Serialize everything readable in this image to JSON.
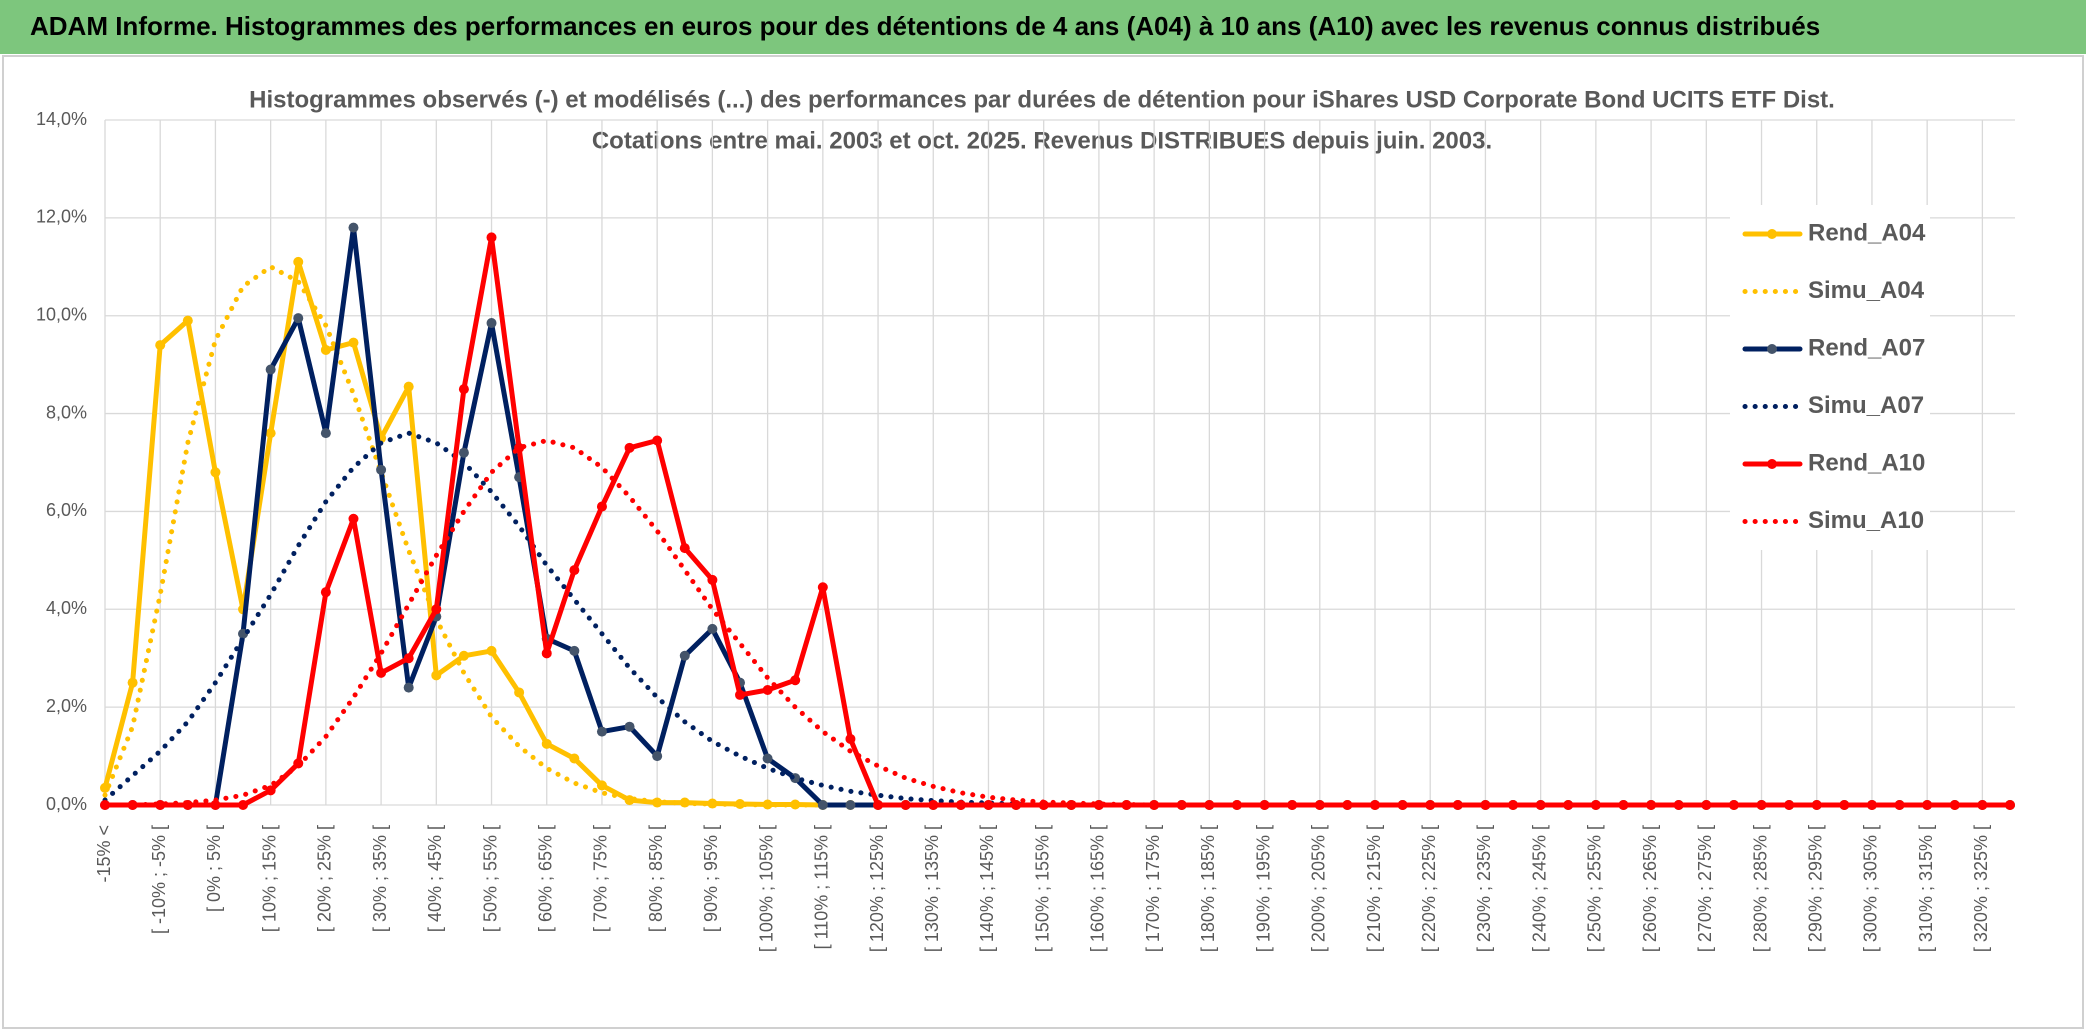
{
  "header": {
    "title": "ADAM Informe. Histogrammes des performances en euros pour des détentions de 4 ans (A04) à 10 ans (A10) avec les revenus connus distribués"
  },
  "chart_data": {
    "type": "line",
    "title": "Histogrammes observés (-) et modélisés (...) des performances par durées de détention pour iShares USD Corporate Bond UCITS ETF Dist.",
    "subtitle": "Cotations entre mai. 2003 et oct. 2025. Revenus DISTRIBUES depuis juin. 2003.",
    "categories": [
      "-15% <",
      null,
      "[ -10% ; -5% [",
      null,
      "[ 0% ; 5% [",
      null,
      "[ 10% ; 15% [",
      null,
      "[ 20% ; 25% [",
      null,
      "[ 30% ; 35% [",
      null,
      "[ 40% ; 45% [",
      null,
      "[ 50% ; 55% [",
      null,
      "[ 60% ; 65% [",
      null,
      "[ 70% ; 75% [",
      null,
      "[ 80% ; 85% [",
      null,
      "[ 90% ; 95% [",
      null,
      "[ 100% ; 105% [",
      null,
      "[ 110% ; 115% [",
      null,
      "[ 120% ; 125% [",
      null,
      "[ 130% ; 135% [",
      null,
      "[ 140% ; 145% [",
      null,
      "[ 150% ; 155% [",
      null,
      "[ 160% ; 165% [",
      null,
      "[ 170% ; 175% [",
      null,
      "[ 180% ; 185% [",
      null,
      "[ 190% ; 195% [",
      null,
      "[ 200% ; 205% [",
      null,
      "[ 210% ; 215% [",
      null,
      "[ 220% ; 225% [",
      null,
      "[ 230% ; 235% [",
      null,
      "[ 240% ; 245% [",
      null,
      "[ 250% ; 255% [",
      null,
      "[ 260% ; 265% [",
      null,
      "[ 270% ; 275% [",
      null,
      "[ 280% ; 285% [",
      null,
      "[ 290% ; 295% [",
      null,
      "[ 300% ; 305% [",
      null,
      "[ 310% ; 315% [",
      null,
      "[ 320% ; 325% [",
      null
    ],
    "series": [
      {
        "name": "Rend_A04",
        "color": "#FFC000",
        "dash": "solid",
        "marker": true,
        "values": [
          0.35,
          2.5,
          9.4,
          9.9,
          6.8,
          4.0,
          7.6,
          11.1,
          9.3,
          9.45,
          7.5,
          8.55,
          2.65,
          3.05,
          3.15,
          2.3,
          1.25,
          0.95,
          0.4,
          0.1,
          0.05,
          0.05,
          0.03,
          0.02,
          0.01,
          0.01,
          0,
          0,
          0,
          0,
          0,
          0,
          0,
          0,
          0,
          0,
          0,
          0,
          0,
          0,
          0,
          0,
          0,
          0,
          0,
          0,
          0,
          0,
          0,
          0,
          0,
          0,
          0,
          0,
          0,
          0,
          0,
          0,
          0,
          0,
          0,
          0,
          0,
          0,
          0,
          0,
          0,
          0,
          0,
          0
        ]
      },
      {
        "name": "Simu_A04",
        "color": "#FFC000",
        "dash": "dotted",
        "marker": false,
        "values": [
          0.2,
          1.6,
          4.3,
          7.4,
          9.5,
          10.6,
          11.0,
          10.7,
          9.8,
          8.4,
          6.8,
          5.2,
          3.8,
          2.7,
          1.8,
          1.2,
          0.75,
          0.45,
          0.25,
          0.13,
          0.07,
          0.03,
          0.02,
          0.01,
          0,
          0,
          0,
          0,
          0,
          0,
          0,
          0,
          0,
          0,
          0,
          0,
          0,
          0,
          0,
          0,
          0,
          0,
          0,
          0,
          0,
          0,
          0,
          0,
          0,
          0,
          0,
          0,
          0,
          0,
          0,
          0,
          0,
          0,
          0,
          0,
          0,
          0,
          0,
          0,
          0,
          0,
          0,
          0,
          0,
          0
        ]
      },
      {
        "name": "Rend_A07",
        "color": "#002060",
        "dash": "solid",
        "marker": true,
        "values": [
          0,
          0,
          0,
          0,
          0,
          3.5,
          8.9,
          9.95,
          7.6,
          11.8,
          6.85,
          2.4,
          3.85,
          7.2,
          9.85,
          6.7,
          3.4,
          3.15,
          1.5,
          1.6,
          1.0,
          3.05,
          3.6,
          2.5,
          0.95,
          0.55,
          0,
          0,
          0,
          0,
          0,
          0,
          0,
          0,
          0,
          0,
          0,
          0,
          0,
          0,
          0,
          0,
          0,
          0,
          0,
          0,
          0,
          0,
          0,
          0,
          0,
          0,
          0,
          0,
          0,
          0,
          0,
          0,
          0,
          0,
          0,
          0,
          0,
          0,
          0,
          0,
          0,
          0,
          0,
          0
        ]
      },
      {
        "name": "Simu_A07",
        "color": "#002060",
        "dash": "dotted",
        "marker": false,
        "values": [
          0.1,
          0.6,
          1.1,
          1.7,
          2.5,
          3.4,
          4.3,
          5.3,
          6.2,
          6.9,
          7.4,
          7.6,
          7.4,
          7.0,
          6.4,
          5.7,
          4.9,
          4.2,
          3.5,
          2.8,
          2.2,
          1.7,
          1.3,
          1.0,
          0.75,
          0.55,
          0.4,
          0.28,
          0.2,
          0.13,
          0.09,
          0.06,
          0.04,
          0.02,
          0.01,
          0,
          0,
          0,
          0,
          0,
          0,
          0,
          0,
          0,
          0,
          0,
          0,
          0,
          0,
          0,
          0,
          0,
          0,
          0,
          0,
          0,
          0,
          0,
          0,
          0,
          0,
          0,
          0,
          0,
          0,
          0,
          0,
          0,
          0,
          0
        ]
      },
      {
        "name": "Rend_A10",
        "color": "#FF0000",
        "dash": "solid",
        "marker": true,
        "values": [
          0,
          0,
          0,
          0,
          0,
          0,
          0.3,
          0.85,
          4.35,
          5.85,
          2.7,
          3.0,
          4.0,
          8.5,
          11.6,
          7.3,
          3.1,
          4.8,
          6.1,
          7.3,
          7.45,
          5.25,
          4.6,
          2.25,
          2.35,
          2.55,
          4.45,
          1.35,
          0,
          0,
          0,
          0,
          0,
          0,
          0,
          0,
          0,
          0,
          0,
          0,
          0,
          0,
          0,
          0,
          0,
          0,
          0,
          0,
          0,
          0,
          0,
          0,
          0,
          0,
          0,
          0,
          0,
          0,
          0,
          0,
          0,
          0,
          0,
          0,
          0,
          0,
          0,
          0,
          0,
          0
        ]
      },
      {
        "name": "Simu_A10",
        "color": "#FF0000",
        "dash": "dotted",
        "marker": false,
        "values": [
          0,
          0,
          0.02,
          0.05,
          0.1,
          0.2,
          0.4,
          0.8,
          1.4,
          2.2,
          3.1,
          4.1,
          5.1,
          6.0,
          6.8,
          7.3,
          7.45,
          7.3,
          6.9,
          6.3,
          5.6,
          4.8,
          4.0,
          3.3,
          2.6,
          2.0,
          1.5,
          1.1,
          0.8,
          0.55,
          0.38,
          0.25,
          0.16,
          0.1,
          0.06,
          0.04,
          0.02,
          0.01,
          0,
          0,
          0,
          0,
          0,
          0,
          0,
          0,
          0,
          0,
          0,
          0,
          0,
          0,
          0,
          0,
          0,
          0,
          0,
          0,
          0,
          0,
          0,
          0,
          0,
          0,
          0,
          0,
          0,
          0,
          0,
          0
        ]
      }
    ],
    "ylim": [
      0,
      14
    ],
    "yticks": [
      {
        "value": 0,
        "label": "0,0%"
      },
      {
        "value": 2,
        "label": "2,0%"
      },
      {
        "value": 4,
        "label": "4,0%"
      },
      {
        "value": 6,
        "label": "6,0%"
      },
      {
        "value": 8,
        "label": "8,0%"
      },
      {
        "value": 10,
        "label": "10,0%"
      },
      {
        "value": 12,
        "label": "12,0%"
      },
      {
        "value": 14,
        "label": "14,0%"
      }
    ],
    "grid": true,
    "legend": "right"
  }
}
